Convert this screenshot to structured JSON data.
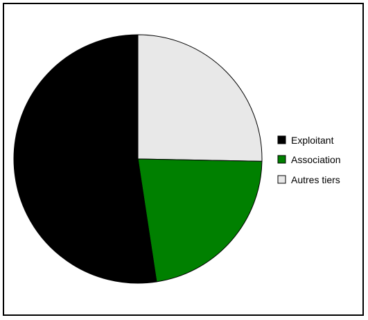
{
  "chart_data": {
    "type": "pie",
    "title": "",
    "start_angle_deg": 0,
    "direction": "clockwise",
    "slices": [
      {
        "label": "Autres tiers",
        "value": 25.3,
        "color": "#E8E8E8"
      },
      {
        "label": "Association",
        "value": 22.3,
        "color": "#008000"
      },
      {
        "label": "Exploitant",
        "value": 52.4,
        "color": "#000000"
      }
    ],
    "legend": {
      "position": "right",
      "items": [
        {
          "label": "Exploitant",
          "color": "#000000"
        },
        {
          "label": "Association",
          "color": "#008000"
        },
        {
          "label": "Autres tiers",
          "color": "#E8E8E8"
        }
      ]
    }
  }
}
